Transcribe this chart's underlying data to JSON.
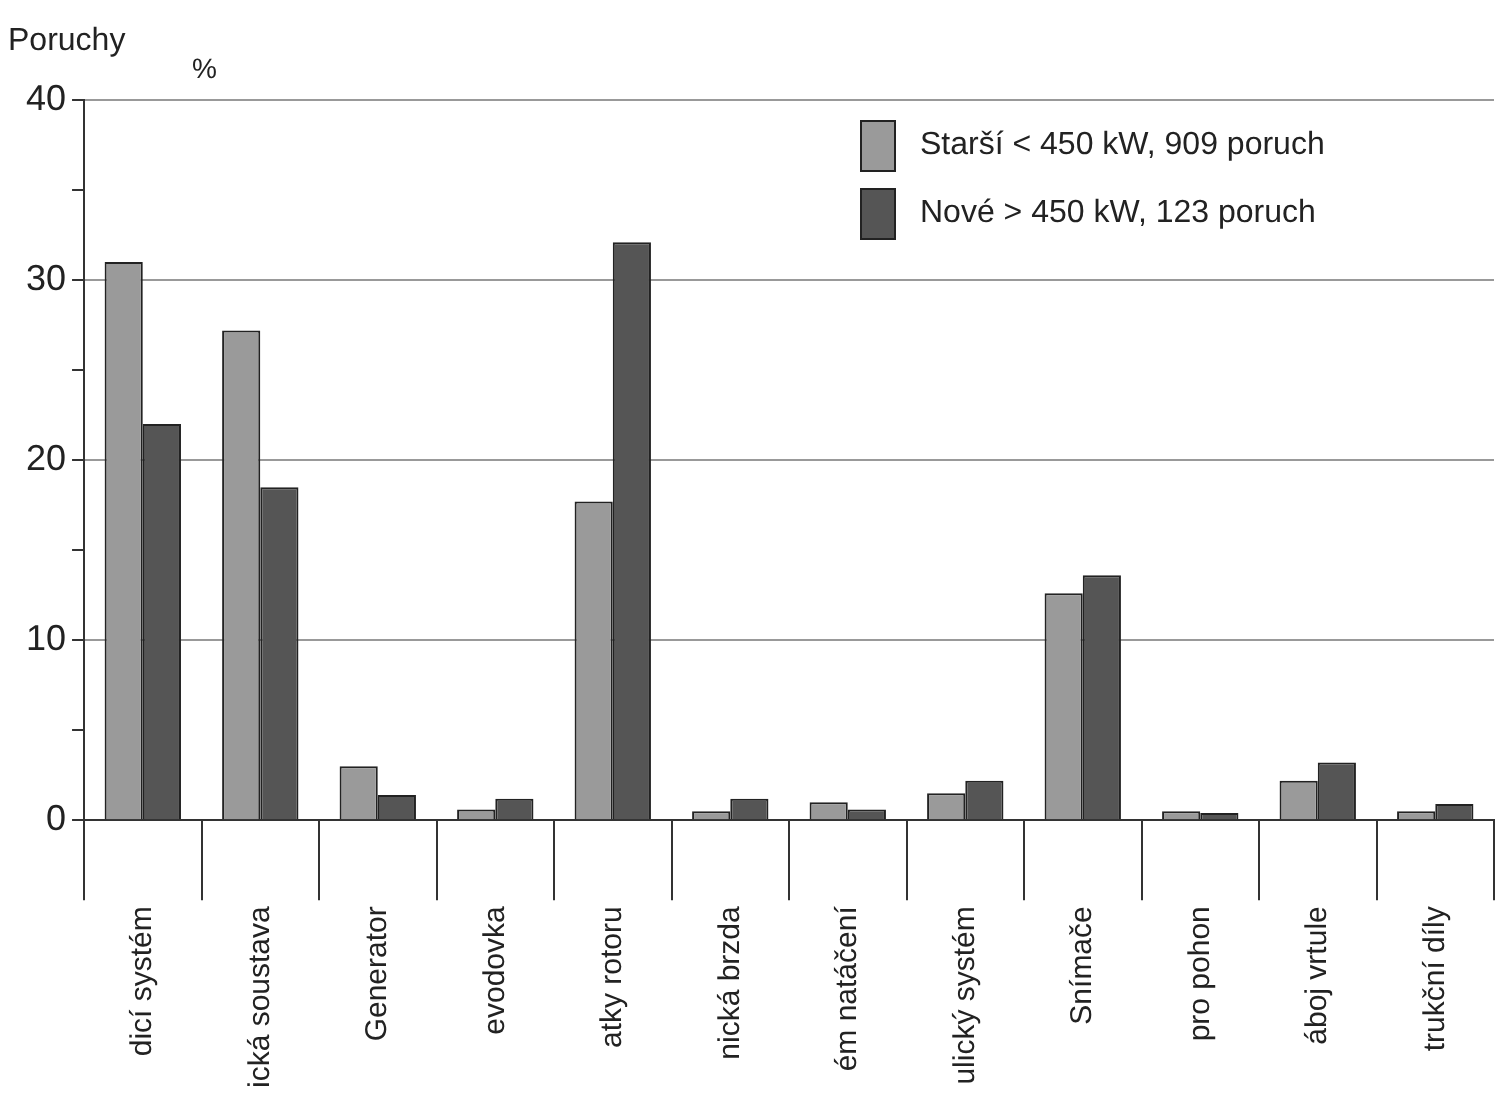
{
  "chart_data": {
    "type": "bar",
    "ylabel": "Poruchy",
    "annotations": [
      "%"
    ],
    "categories": [
      "dicí systém",
      "ická soustava",
      "Generator",
      "evodovka",
      "atky rotoru",
      "nická brzda",
      "ém natáčení",
      "ulický systém",
      "Snímače",
      "pro pohon",
      "áboj vrtule",
      "trukční díly"
    ],
    "series": [
      {
        "name": "Starší < 450 kW, 909 poruch",
        "color": "#9a9a9a",
        "values": [
          31,
          27.2,
          3,
          0.6,
          17.7,
          0.5,
          1,
          1.5,
          12.6,
          0.5,
          2.2,
          0.5
        ]
      },
      {
        "name": "Nové > 450 kW, 123 poruch",
        "color": "#555555",
        "values": [
          22,
          18.5,
          1.4,
          1.2,
          32.1,
          1.2,
          0.6,
          2.2,
          13.6,
          0.4,
          3.2,
          0.9
        ]
      }
    ],
    "ylim": [
      0,
      40
    ],
    "yticks": [
      0,
      {
        "value": 5,
        "label": null
      },
      10,
      {
        "value": 15,
        "label": null
      },
      20,
      {
        "value": 25,
        "label": null
      },
      30,
      {
        "value": 35,
        "label": null
      },
      40
    ],
    "grid": "y",
    "legend": "top right"
  }
}
